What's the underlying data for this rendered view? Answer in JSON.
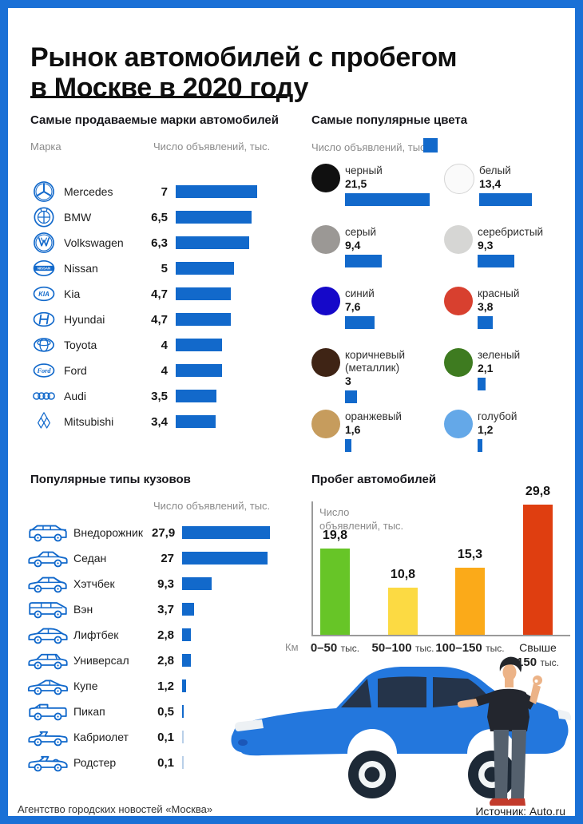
{
  "title": {
    "line1": "Рынок автомобилей с пробегом",
    "line2": "в Москве в 2020 году"
  },
  "footer": {
    "left": "Агентство городских новостей «Москва»",
    "right": "Источник: Auto.ru"
  },
  "theme": {
    "accent": "#1269cb",
    "frame": "#1a70d6"
  },
  "chart_data": [
    {
      "id": "brands",
      "type": "bar",
      "orientation": "horizontal",
      "title": "Самые продаваемые марки автомобилей",
      "col_header_left": "Марка",
      "col_header_right": "Число объявлений, тыс.",
      "categories": [
        "Mercedes",
        "BMW",
        "Volkswagen",
        "Nissan",
        "Kia",
        "Hyundai",
        "Toyota",
        "Ford",
        "Audi",
        "Mitsubishi"
      ],
      "values": [
        7,
        6.5,
        6.3,
        5,
        4.7,
        4.7,
        4,
        4,
        3.5,
        3.4
      ],
      "value_labels": [
        "7",
        "6,5",
        "6,3",
        "5",
        "4,7",
        "4,7",
        "4",
        "4",
        "3,5",
        "3,4"
      ],
      "icons": [
        "mercedes-logo-icon",
        "bmw-logo-icon",
        "volkswagen-logo-icon",
        "nissan-logo-icon",
        "kia-logo-icon",
        "hyundai-logo-icon",
        "toyota-logo-icon",
        "ford-logo-icon",
        "audi-logo-icon",
        "mitsubishi-logo-icon"
      ],
      "bar_color": "#1269cb"
    },
    {
      "id": "colors",
      "type": "bar",
      "orientation": "horizontal",
      "title": "Самые популярные цвета",
      "legend": "Число объявлений, тыс.",
      "categories": [
        "черный",
        "белый",
        "серый",
        "серебристый",
        "синий",
        "красный",
        "коричневый (металлик)",
        "зеленый",
        "оранжевый",
        "голубой"
      ],
      "values": [
        21.5,
        13.4,
        9.4,
        9.3,
        7.6,
        3.8,
        3,
        2.1,
        1.6,
        1.2
      ],
      "value_labels": [
        "21,5",
        "13,4",
        "9,4",
        "9,3",
        "7,6",
        "3,8",
        "3",
        "2,1",
        "1,6",
        "1,2"
      ],
      "swatches": [
        "#101010",
        "#fafafa",
        "#9b9895",
        "#d6d6d4",
        "#1508c9",
        "#d8402f",
        "#3f2415",
        "#3e7b20",
        "#c69c5d",
        "#64a8e8"
      ],
      "swatch_borders": [
        "none",
        "#d5d5d5",
        "none",
        "none",
        "none",
        "none",
        "none",
        "none",
        "none",
        "none"
      ],
      "bar_color": "#1269cb"
    },
    {
      "id": "body_types",
      "type": "bar",
      "orientation": "horizontal",
      "title": "Популярные типы кузовов",
      "col_header_right": "Число объявлений, тыс.",
      "categories": [
        "Внедорожник",
        "Седан",
        "Хэтчбек",
        "Вэн",
        "Лифтбек",
        "Универсал",
        "Купе",
        "Пикап",
        "Кабриолет",
        "Родстер"
      ],
      "values": [
        27.9,
        27,
        9.3,
        3.7,
        2.8,
        2.8,
        1.2,
        0.5,
        0.1,
        0.1
      ],
      "value_labels": [
        "27,9",
        "27",
        "9,3",
        "3,7",
        "2,8",
        "2,8",
        "1,2",
        "0,5",
        "0,1",
        "0,1"
      ],
      "icons": [
        "suv-icon",
        "sedan-icon",
        "hatchback-icon",
        "van-icon",
        "liftback-icon",
        "wagon-icon",
        "coupe-icon",
        "pickup-icon",
        "cabriolet-icon",
        "roadster-icon"
      ],
      "bar_color": "#1269cb"
    },
    {
      "id": "mileage",
      "type": "bar",
      "orientation": "vertical",
      "title": "Пробег автомобилей",
      "ylabel": "Число объявлений, тыс.",
      "ylabel_lines": [
        "Число",
        "объявлений, тыс."
      ],
      "xlabel": "Км",
      "categories": [
        "0–50 тыс.",
        "50–100 тыс.",
        "100–150 тыс.",
        "Свыше 150 тыс."
      ],
      "categories_rich": [
        {
          "prefix": "",
          "num": "0–50",
          "unit": "тыс."
        },
        {
          "prefix": "",
          "num": "50–100",
          "unit": "тыс."
        },
        {
          "prefix": "",
          "num": "100–150",
          "unit": "тыс."
        },
        {
          "prefix": "Свыше",
          "num": "150",
          "unit": "тыс."
        }
      ],
      "values": [
        19.8,
        10.8,
        15.3,
        29.8
      ],
      "value_labels": [
        "19,8",
        "10,8",
        "15,3",
        "29,8"
      ],
      "bar_colors": [
        "#67c527",
        "#fcda43",
        "#fbaa19",
        "#df3e10"
      ],
      "ylim": [
        0,
        30
      ],
      "grid": false
    }
  ]
}
